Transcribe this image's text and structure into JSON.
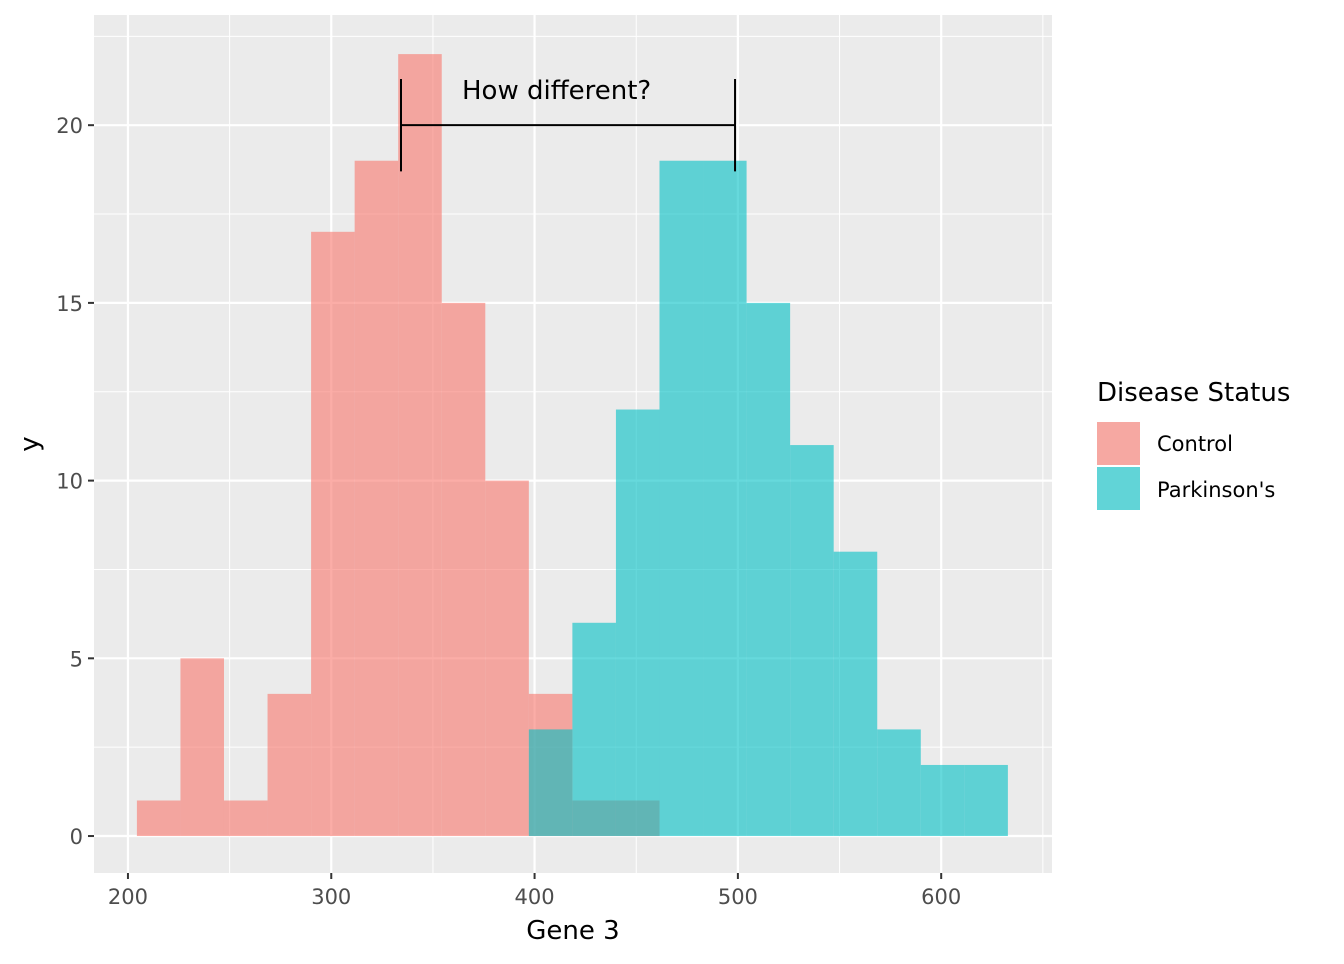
{
  "chart_data": {
    "type": "histogram",
    "xlabel": "Gene 3",
    "ylabel": "y",
    "xlim": [
      183.3,
      654.5
    ],
    "ylim": [
      -1.04,
      23.1
    ],
    "xticks": [
      200,
      300,
      400,
      500,
      600
    ],
    "yticks": [
      0,
      5,
      10,
      15,
      20
    ],
    "grid": true,
    "bin_start": 204.4,
    "bin_width": 21.42,
    "series": [
      {
        "name": "Control",
        "color": "#F8766D",
        "opacity": 0.6,
        "counts": [
          1,
          5,
          1,
          4,
          17,
          19,
          22,
          15,
          10,
          4,
          1,
          1,
          0,
          0,
          0,
          0,
          0,
          0,
          0,
          0
        ]
      },
      {
        "name": "Parkinson's",
        "color": "#00BFC4",
        "opacity": 0.6,
        "counts": [
          0,
          0,
          0,
          0,
          0,
          0,
          0,
          0,
          0,
          3,
          6,
          12,
          19,
          19,
          15,
          11,
          8,
          3,
          2,
          2
        ]
      }
    ],
    "annotation": {
      "text": "How different?",
      "x_from": 334.3,
      "x_to": 498.6,
      "y": 20,
      "tick_half_height": 1.3
    },
    "legend": {
      "title": "Disease Status",
      "placement": "right",
      "entries": [
        "Control",
        "Parkinson's"
      ]
    }
  }
}
